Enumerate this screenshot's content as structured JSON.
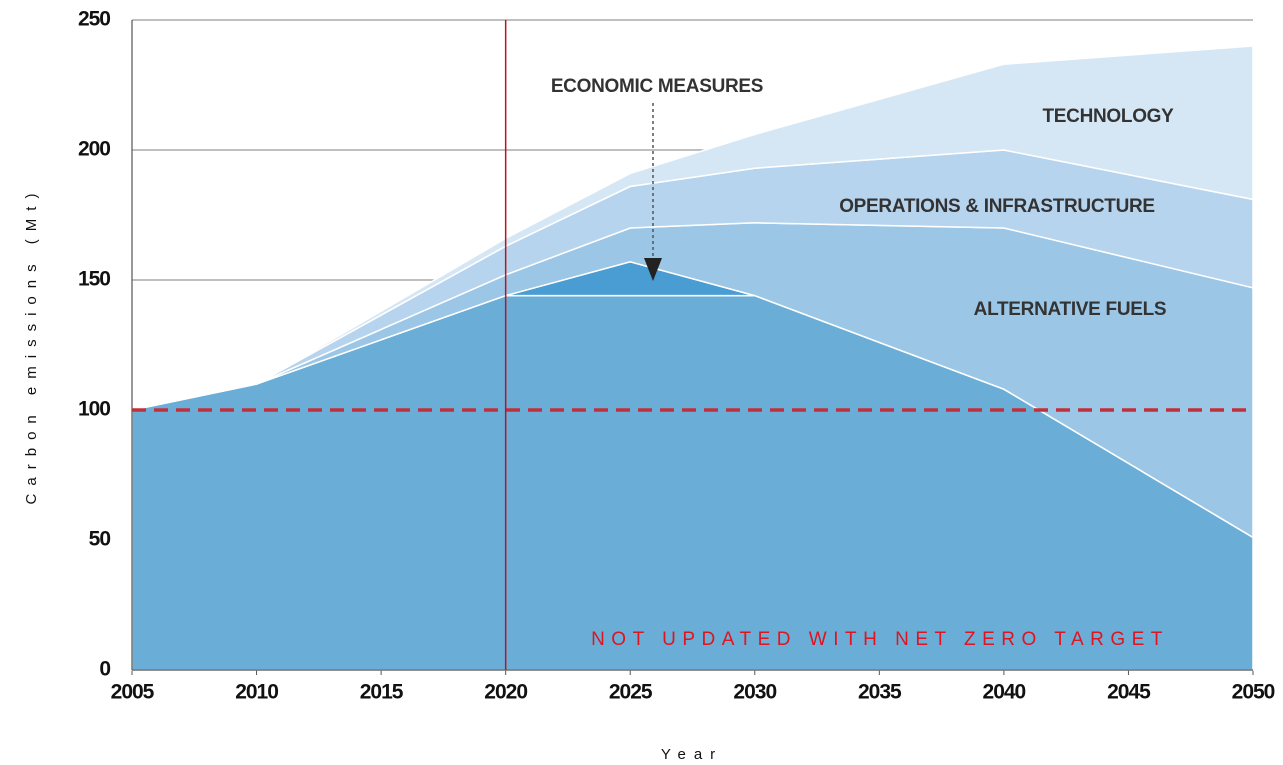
{
  "chart_data": {
    "type": "stacked_area",
    "x": [
      2005,
      2010,
      2020,
      2025,
      2030,
      2040,
      2050
    ],
    "series": [
      {
        "color": "#6aaed8",
        "values": [
          100,
          110,
          144,
          144,
          144,
          108,
          51
        ]
      },
      {
        "name": "ECONOMIC MEASURES",
        "color": "#4a9dd2",
        "values": [
          0,
          0,
          0,
          13,
          0,
          0,
          0
        ]
      },
      {
        "name": "ALTERNATIVE FUELS",
        "color": "#9bc6e6",
        "values": [
          0,
          0,
          8,
          13,
          28,
          62,
          96
        ]
      },
      {
        "name": "OPERATIONS & INFRASTRUCTURE",
        "color": "#b7d4ee",
        "values": [
          0,
          0,
          11,
          16,
          21,
          30,
          34
        ]
      },
      {
        "name": "TECHNOLOGY",
        "color": "#d5e7f5",
        "values": [
          0,
          0,
          3,
          5,
          13,
          33,
          59
        ]
      }
    ],
    "xlim": [
      2005,
      2050
    ],
    "xticks": [
      2005,
      2010,
      2015,
      2020,
      2025,
      2030,
      2035,
      2040,
      2045,
      2050
    ],
    "ylim": [
      0,
      250
    ],
    "yticks": [
      0,
      50,
      100,
      150,
      200,
      250
    ],
    "xlabel": "Year",
    "ylabel": "Carbon emissions (Mt)",
    "grid": true,
    "vline": {
      "value": 2020,
      "color": "#c0121c"
    },
    "hline": {
      "value": 100,
      "color": "#c0303a"
    },
    "annotation": "NOT UPDATED WITH NET ZERO TARGET"
  }
}
